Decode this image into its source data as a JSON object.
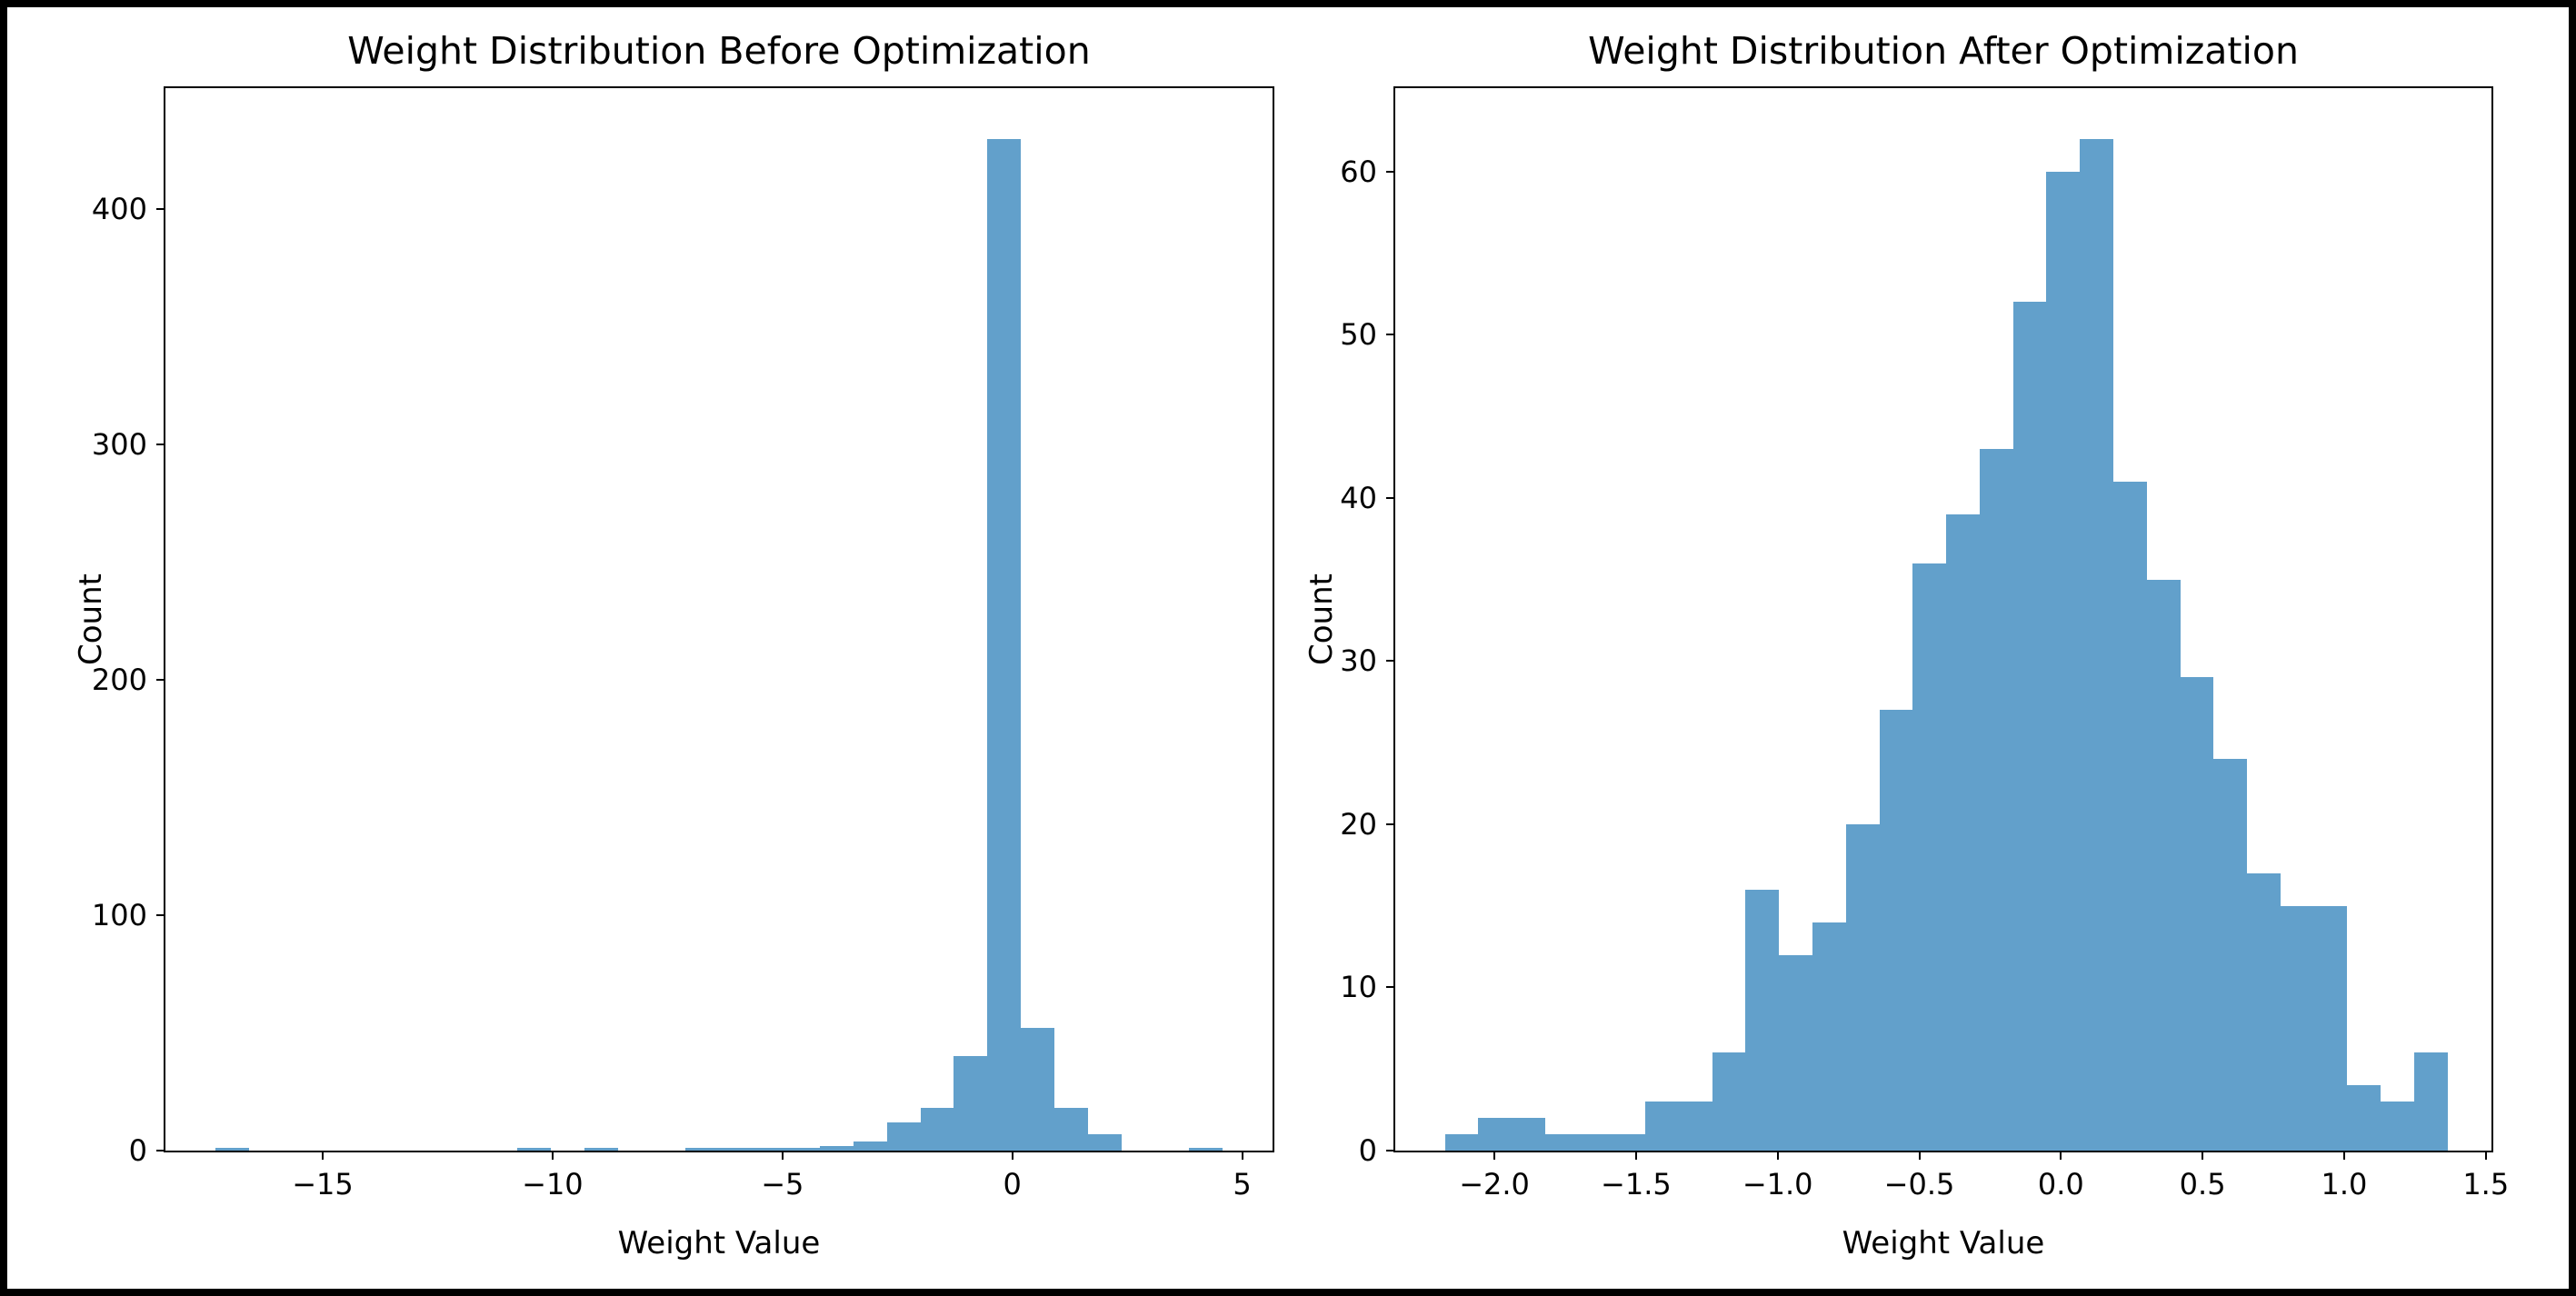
{
  "figure": {
    "background": "#ffffff",
    "frame_color": "#000000"
  },
  "chart_data": [
    {
      "type": "bar",
      "variant": "histogram",
      "title": "Weight Distribution Before Optimization",
      "xlabel": "Weight Value",
      "ylabel": "Count",
      "bar_color": "#62a0cb",
      "grid": false,
      "legend": null,
      "xlim": [
        -18.42,
        5.66
      ],
      "ylim": [
        0,
        451.5
      ],
      "bin_start": -17.33,
      "bin_width": 0.73,
      "counts": [
        1,
        0,
        0,
        0,
        0,
        0,
        0,
        0,
        0,
        1,
        0,
        1,
        0,
        0,
        1,
        1,
        1,
        1,
        2,
        4,
        12,
        18,
        40,
        430,
        52,
        18,
        7,
        0,
        0,
        1
      ],
      "xticks": [
        {
          "value": -15,
          "label": "−15"
        },
        {
          "value": -10,
          "label": "−10"
        },
        {
          "value": -5,
          "label": "−5"
        },
        {
          "value": 0,
          "label": "0"
        },
        {
          "value": 5,
          "label": "5"
        }
      ],
      "yticks": [
        {
          "value": 0,
          "label": "0"
        },
        {
          "value": 100,
          "label": "100"
        },
        {
          "value": 200,
          "label": "200"
        },
        {
          "value": 300,
          "label": "300"
        },
        {
          "value": 400,
          "label": "400"
        }
      ]
    },
    {
      "type": "bar",
      "variant": "histogram",
      "title": "Weight Distribution After Optimization",
      "xlabel": "Weight Value",
      "ylabel": "Count",
      "bar_color": "#62a0cb",
      "grid": false,
      "legend": null,
      "xlim": [
        -2.35,
        1.52
      ],
      "ylim": [
        0,
        65.1
      ],
      "bin_start": -2.175,
      "bin_width": 0.118,
      "counts": [
        1,
        2,
        2,
        1,
        1,
        1,
        3,
        3,
        6,
        16,
        12,
        14,
        20,
        27,
        36,
        39,
        43,
        52,
        60,
        62,
        41,
        35,
        29,
        24,
        17,
        15,
        15,
        4,
        3,
        6
      ],
      "xticks": [
        {
          "value": -2.0,
          "label": "−2.0"
        },
        {
          "value": -1.5,
          "label": "−1.5"
        },
        {
          "value": -1.0,
          "label": "−1.0"
        },
        {
          "value": -0.5,
          "label": "−0.5"
        },
        {
          "value": 0.0,
          "label": "0.0"
        },
        {
          "value": 0.5,
          "label": "0.5"
        },
        {
          "value": 1.0,
          "label": "1.0"
        },
        {
          "value": 1.5,
          "label": "1.5"
        }
      ],
      "yticks": [
        {
          "value": 0,
          "label": "0"
        },
        {
          "value": 10,
          "label": "10"
        },
        {
          "value": 20,
          "label": "20"
        },
        {
          "value": 30,
          "label": "30"
        },
        {
          "value": 40,
          "label": "40"
        },
        {
          "value": 50,
          "label": "50"
        },
        {
          "value": 60,
          "label": "60"
        }
      ]
    }
  ]
}
